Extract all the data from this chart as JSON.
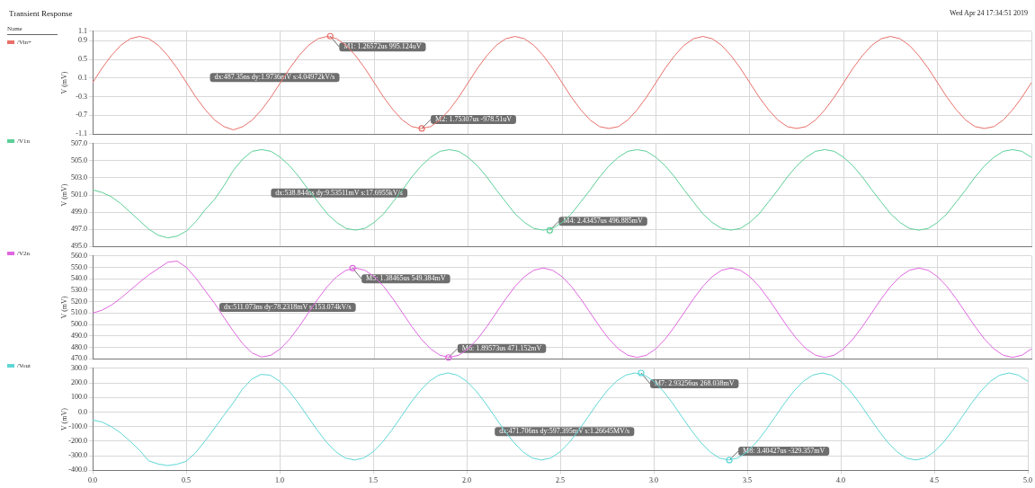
{
  "chart_data": [
    {
      "type": "line",
      "title": "Transient Response",
      "subtitle": "Wed Apr 24 17:34:51 2019",
      "legend_title": "Name",
      "legend": "left",
      "grid": true,
      "tick_labels": "y",
      "ylabel": "V (mV)",
      "xlim": [
        0,
        5
      ],
      "xticks": [
        0,
        0.5,
        1,
        1.5,
        2,
        2.5,
        3,
        3.5,
        4,
        4.5,
        5
      ],
      "ylim": [
        -1.1,
        1.1
      ],
      "yticks": [
        -1.1,
        -0.7,
        -0.3,
        0.1,
        0.5,
        0.9,
        1.1
      ],
      "x": [
        0,
        0.05,
        0.1,
        0.15,
        0.2,
        0.25,
        0.3,
        0.35,
        0.4,
        0.45,
        0.5,
        0.55,
        0.6,
        0.65,
        0.7,
        0.75,
        0.8,
        0.85,
        0.9,
        0.95,
        1,
        1.05,
        1.1,
        1.15,
        1.2,
        1.25,
        1.3,
        1.35,
        1.4,
        1.45,
        1.5,
        1.55,
        1.6,
        1.65,
        1.7,
        1.75,
        1.8,
        1.85,
        1.9,
        1.95,
        2,
        2.05,
        2.1,
        2.15,
        2.2,
        2.25,
        2.3,
        2.35,
        2.4,
        2.45,
        2.5,
        2.55,
        2.6,
        2.65,
        2.7,
        2.75,
        2.8,
        2.85,
        2.9,
        2.95,
        3,
        3.05,
        3.1,
        3.15,
        3.2,
        3.25,
        3.3,
        3.35,
        3.4,
        3.45,
        3.5,
        3.55,
        3.6,
        3.65,
        3.7,
        3.75,
        3.8,
        3.85,
        3.9,
        3.95,
        4,
        4.05,
        4.1,
        4.15,
        4.2,
        4.25,
        4.3,
        4.35,
        4.4,
        4.45,
        4.5,
        4.55,
        4.6,
        4.65,
        4.7,
        4.75,
        4.8,
        4.85,
        4.9,
        4.95,
        5
      ],
      "series": [
        {
          "name": "/Vin+",
          "color": "#e8706a",
          "values": [
            0,
            0.31,
            0.58,
            0.8,
            0.94,
            0.99,
            0.94,
            0.8,
            0.58,
            0.31,
            0,
            -0.31,
            -0.58,
            -0.8,
            -0.94,
            -1.01,
            -0.94,
            -0.8,
            -0.58,
            -0.31,
            0,
            0.31,
            0.58,
            0.8,
            0.94,
            0.99,
            0.94,
            0.8,
            0.58,
            0.31,
            0,
            -0.31,
            -0.58,
            -0.8,
            -0.94,
            -0.98,
            -0.94,
            -0.8,
            -0.58,
            -0.31,
            0,
            0.31,
            0.58,
            0.8,
            0.94,
            0.99,
            0.94,
            0.8,
            0.58,
            0.31,
            0,
            -0.31,
            -0.58,
            -0.8,
            -0.94,
            -0.98,
            -0.94,
            -0.8,
            -0.58,
            -0.31,
            0,
            0.31,
            0.58,
            0.8,
            0.94,
            0.99,
            0.94,
            0.8,
            0.58,
            0.31,
            0,
            -0.31,
            -0.58,
            -0.8,
            -0.94,
            -0.98,
            -0.94,
            -0.8,
            -0.58,
            -0.31,
            0,
            0.31,
            0.58,
            0.8,
            0.94,
            0.99,
            0.94,
            0.8,
            0.58,
            0.31,
            0,
            -0.31,
            -0.58,
            -0.8,
            -0.94,
            -0.98,
            -0.94,
            -0.8,
            -0.58,
            -0.31,
            0
          ]
        }
      ],
      "annotations": [
        "dx:487.35ns dy:1.9736mV s:4.04972kV/s",
        {
          "text": "M1: 1.26572us 995.124uV",
          "x": 1.26572,
          "y": 0.995124
        },
        {
          "text": "M2: 1.75307us -978.51uV",
          "x": 1.75307,
          "y": -0.97851
        }
      ]
    },
    {
      "type": "line",
      "legend": "left",
      "grid": true,
      "tick_labels": "y",
      "ylabel": "V (mV)",
      "xlim": [
        0,
        5
      ],
      "xticks": [
        0,
        0.5,
        1,
        1.5,
        2,
        2.5,
        3,
        3.5,
        4,
        4.5,
        5
      ],
      "ylim": [
        495,
        507
      ],
      "yticks": [
        {
          "value": 495,
          "label": "495.0"
        },
        {
          "value": 497,
          "label": "497.0"
        },
        {
          "value": 499,
          "label": "499.0"
        },
        {
          "value": 501,
          "label": "501.0"
        },
        {
          "value": 503,
          "label": "503.0"
        },
        {
          "value": 505,
          "label": "505.0"
        },
        {
          "value": 507,
          "label": "507.0"
        }
      ],
      "x": [
        0,
        0.05,
        0.1,
        0.15,
        0.2,
        0.25,
        0.3,
        0.35,
        0.4,
        0.45,
        0.5,
        0.55,
        0.6,
        0.65,
        0.7,
        0.75,
        0.8,
        0.85,
        0.9,
        0.95,
        1,
        1.05,
        1.1,
        1.15,
        1.2,
        1.25,
        1.3,
        1.35,
        1.4,
        1.45,
        1.5,
        1.55,
        1.6,
        1.65,
        1.7,
        1.75,
        1.8,
        1.85,
        1.9,
        1.95,
        2,
        2.05,
        2.1,
        2.15,
        2.2,
        2.25,
        2.3,
        2.35,
        2.4,
        2.45,
        2.5,
        2.55,
        2.6,
        2.65,
        2.7,
        2.75,
        2.8,
        2.85,
        2.9,
        2.95,
        3,
        3.05,
        3.1,
        3.15,
        3.2,
        3.25,
        3.3,
        3.35,
        3.4,
        3.45,
        3.5,
        3.55,
        3.6,
        3.65,
        3.7,
        3.75,
        3.8,
        3.85,
        3.9,
        3.95,
        4,
        4.05,
        4.1,
        4.15,
        4.2,
        4.25,
        4.3,
        4.35,
        4.4,
        4.45,
        4.5,
        4.55,
        4.6,
        4.65,
        4.7,
        4.75,
        4.8,
        4.85,
        4.9,
        4.95,
        5
      ],
      "series": [
        {
          "name": "/V1n",
          "color": "#5ccf98",
          "values": [
            501.6,
            501.3,
            500.8,
            500.0,
            499.0,
            498.0,
            497.0,
            496.3,
            496.0,
            496.2,
            496.8,
            497.9,
            499.3,
            500.5,
            502.1,
            503.9,
            505.2,
            506.1,
            506.3,
            506.1,
            505.4,
            504.4,
            503.1,
            501.6,
            500.2,
            498.8,
            497.8,
            497.1,
            496.9,
            497.1,
            497.8,
            498.8,
            500.2,
            501.6,
            503.1,
            504.4,
            505.4,
            506.1,
            506.3,
            506.1,
            505.4,
            504.4,
            503.1,
            501.6,
            500.2,
            498.8,
            497.8,
            497.1,
            496.9,
            497.1,
            497.8,
            498.8,
            500.2,
            501.6,
            503.1,
            504.4,
            505.4,
            506.1,
            506.3,
            506.1,
            505.4,
            504.4,
            503.1,
            501.6,
            500.2,
            498.8,
            497.8,
            497.1,
            496.9,
            497.1,
            497.8,
            498.8,
            500.2,
            501.6,
            503.1,
            504.4,
            505.4,
            506.1,
            506.3,
            506.1,
            505.4,
            504.4,
            503.1,
            501.6,
            500.2,
            498.8,
            497.8,
            497.1,
            496.9,
            497.1,
            497.8,
            498.8,
            500.2,
            501.6,
            503.1,
            504.4,
            505.4,
            506.1,
            506.3,
            506.1,
            505.4
          ]
        }
      ],
      "annotations": [
        "dx:538.844ns dy:9.53511mV s:17.6955kV/s",
        {
          "text": "M4: 2.43457us 496.885mV",
          "x": 2.43457,
          "y": 496.885
        }
      ]
    },
    {
      "type": "line",
      "legend": "left",
      "grid": true,
      "tick_labels": "y",
      "ylabel": "V (mV)",
      "xlim": [
        0,
        5
      ],
      "xticks": [
        0,
        0.5,
        1,
        1.5,
        2,
        2.5,
        3,
        3.5,
        4,
        4.5,
        5
      ],
      "ylim": [
        470,
        560
      ],
      "yticks": [
        {
          "value": 470,
          "label": "470.0"
        },
        {
          "value": 480,
          "label": "480.0"
        },
        {
          "value": 490,
          "label": "490.0"
        },
        {
          "value": 500,
          "label": "500.0"
        },
        {
          "value": 510,
          "label": "510.0"
        },
        {
          "value": 520,
          "label": "520.0"
        },
        {
          "value": 530,
          "label": "530.0"
        },
        {
          "value": 540,
          "label": "540.0"
        },
        {
          "value": 550,
          "label": "550.0"
        },
        {
          "value": 560,
          "label": "560.0"
        }
      ],
      "x": [
        0,
        0.05,
        0.1,
        0.15,
        0.2,
        0.25,
        0.3,
        0.35,
        0.4,
        0.45,
        0.5,
        0.55,
        0.6,
        0.65,
        0.7,
        0.75,
        0.8,
        0.85,
        0.9,
        0.95,
        1,
        1.05,
        1.1,
        1.15,
        1.2,
        1.25,
        1.3,
        1.35,
        1.4,
        1.45,
        1.5,
        1.55,
        1.6,
        1.65,
        1.7,
        1.75,
        1.8,
        1.85,
        1.9,
        1.95,
        2,
        2.05,
        2.1,
        2.15,
        2.2,
        2.25,
        2.3,
        2.35,
        2.4,
        2.45,
        2.5,
        2.55,
        2.6,
        2.65,
        2.7,
        2.75,
        2.8,
        2.85,
        2.9,
        2.95,
        3,
        3.05,
        3.1,
        3.15,
        3.2,
        3.25,
        3.3,
        3.35,
        3.4,
        3.45,
        3.5,
        3.55,
        3.6,
        3.65,
        3.7,
        3.75,
        3.8,
        3.85,
        3.9,
        3.95,
        4,
        4.05,
        4.1,
        4.15,
        4.2,
        4.25,
        4.3,
        4.35,
        4.4,
        4.45,
        4.5,
        4.55,
        4.6,
        4.65,
        4.7,
        4.75,
        4.8,
        4.85,
        4.9,
        4.95,
        5
      ],
      "series": [
        {
          "name": "/V2n",
          "color": "#e066e0",
          "values": [
            510,
            512.5,
            517,
            523,
            530,
            537,
            543.5,
            549,
            554.5,
            555.5,
            550,
            540.5,
            529.5,
            518.5,
            506,
            494,
            483,
            475,
            471.5,
            473.1,
            478.7,
            487.3,
            498.2,
            510.3,
            522.4,
            533.3,
            541.9,
            547.5,
            549.4,
            547.5,
            541.9,
            533.3,
            522.4,
            510.3,
            498.2,
            487.3,
            478.7,
            473.1,
            471.2,
            473.1,
            478.7,
            487.3,
            498.2,
            510.3,
            522.4,
            533.3,
            541.9,
            547.5,
            549.4,
            547.5,
            541.9,
            533.3,
            522.4,
            510.3,
            498.2,
            487.3,
            478.7,
            473.1,
            471.2,
            473.1,
            478.7,
            487.3,
            498.2,
            510.3,
            522.4,
            533.3,
            541.9,
            547.5,
            549.4,
            547.5,
            541.9,
            533.3,
            522.4,
            510.3,
            498.2,
            487.3,
            478.7,
            473.1,
            471.2,
            473.1,
            478.7,
            487.3,
            498.2,
            510.3,
            522.4,
            533.3,
            541.9,
            547.5,
            549.4,
            547.5,
            541.9,
            533.3,
            522.4,
            510.3,
            498.2,
            487.3,
            478.7,
            473.1,
            471.2,
            473.1,
            478.7
          ]
        }
      ],
      "annotations": [
        "dx:511.073ns dy:78.2318mV s:153.074kV/s",
        {
          "text": "M5: 1.38465us 549.384mV",
          "x": 1.38465,
          "y": 549.384
        },
        {
          "text": "M6: 1.89573us 471.152mV",
          "x": 1.89573,
          "y": 471.152
        }
      ]
    },
    {
      "type": "line",
      "legend": "left",
      "grid": true,
      "ylabel": "V (mV)",
      "xlim": [
        0,
        5
      ],
      "xticks": [
        {
          "value": 0,
          "label": "0.0"
        },
        {
          "value": 0.5,
          "label": "0.5"
        },
        {
          "value": 1,
          "label": "1.0"
        },
        {
          "value": 1.5,
          "label": "1.5"
        },
        {
          "value": 2,
          "label": "2.0"
        },
        {
          "value": 2.5,
          "label": "2.5"
        },
        {
          "value": 3,
          "label": "3.0"
        },
        {
          "value": 3.5,
          "label": "3.5"
        },
        {
          "value": 4,
          "label": "4.0"
        },
        {
          "value": 4.5,
          "label": "4.5"
        },
        {
          "value": 5,
          "label": "5.0"
        }
      ],
      "ylim": [
        -400,
        300
      ],
      "yticks": [
        {
          "value": -400,
          "label": "-400.0"
        },
        {
          "value": -300,
          "label": "-300.0"
        },
        {
          "value": -200,
          "label": "-200.0"
        },
        {
          "value": -100,
          "label": "-100.0"
        },
        {
          "value": 0,
          "label": "0.0"
        },
        {
          "value": 100,
          "label": "100.0"
        },
        {
          "value": 200,
          "label": "200.0"
        },
        {
          "value": 300,
          "label": "300.0"
        }
      ],
      "x": [
        0,
        0.05,
        0.1,
        0.15,
        0.2,
        0.25,
        0.3,
        0.35,
        0.4,
        0.45,
        0.5,
        0.55,
        0.6,
        0.65,
        0.7,
        0.75,
        0.8,
        0.85,
        0.9,
        0.95,
        1,
        1.05,
        1.1,
        1.15,
        1.2,
        1.25,
        1.3,
        1.35,
        1.4,
        1.45,
        1.5,
        1.55,
        1.6,
        1.65,
        1.7,
        1.75,
        1.8,
        1.85,
        1.9,
        1.95,
        2,
        2.05,
        2.1,
        2.15,
        2.2,
        2.25,
        2.3,
        2.35,
        2.4,
        2.45,
        2.5,
        2.55,
        2.6,
        2.65,
        2.7,
        2.75,
        2.8,
        2.85,
        2.9,
        2.95,
        3,
        3.05,
        3.1,
        3.15,
        3.2,
        3.25,
        3.3,
        3.35,
        3.4,
        3.45,
        3.5,
        3.55,
        3.6,
        3.65,
        3.7,
        3.75,
        3.8,
        3.85,
        3.9,
        3.95,
        4,
        4.05,
        4.1,
        4.15,
        4.2,
        4.25,
        4.3,
        4.35,
        4.4,
        4.45,
        4.5,
        4.55,
        4.6,
        4.65,
        4.7,
        4.75,
        4.8,
        4.85,
        4.9,
        4.95,
        5
      ],
      "series": [
        {
          "name": "/Vout",
          "color": "#5fd6d6",
          "values": [
            -55,
            -68,
            -100,
            -143,
            -200,
            -260,
            -335,
            -356,
            -367,
            -358,
            -338,
            -280,
            -200,
            -114,
            -25,
            60,
            155,
            225,
            258,
            253,
            211,
            145,
            62,
            -31,
            -123,
            -206,
            -272,
            -315,
            -329,
            -315,
            -272,
            -206,
            -123,
            -31,
            62,
            145,
            211,
            253,
            268,
            253,
            211,
            145,
            62,
            -31,
            -123,
            -206,
            -272,
            -315,
            -329,
            -315,
            -272,
            -206,
            -123,
            -31,
            62,
            145,
            211,
            253,
            268,
            253,
            211,
            145,
            62,
            -31,
            -123,
            -206,
            -272,
            -315,
            -329,
            -315,
            -272,
            -206,
            -123,
            -31,
            62,
            145,
            211,
            253,
            268,
            253,
            211,
            145,
            62,
            -31,
            -123,
            -206,
            -272,
            -315,
            -329,
            -315,
            -272,
            -206,
            -123,
            -31,
            62,
            145,
            211,
            253,
            268,
            253,
            211
          ]
        }
      ],
      "annotations": [
        "dx:471.706ns dy:597.395mV s:1.26645MV/s",
        {
          "text": "M7: 2.93256us 268.038mV",
          "x": 2.93256,
          "y": 268.038
        },
        {
          "text": "M8: 3.40427us -329.357mV",
          "x": 3.40427,
          "y": -329.357
        }
      ]
    }
  ]
}
